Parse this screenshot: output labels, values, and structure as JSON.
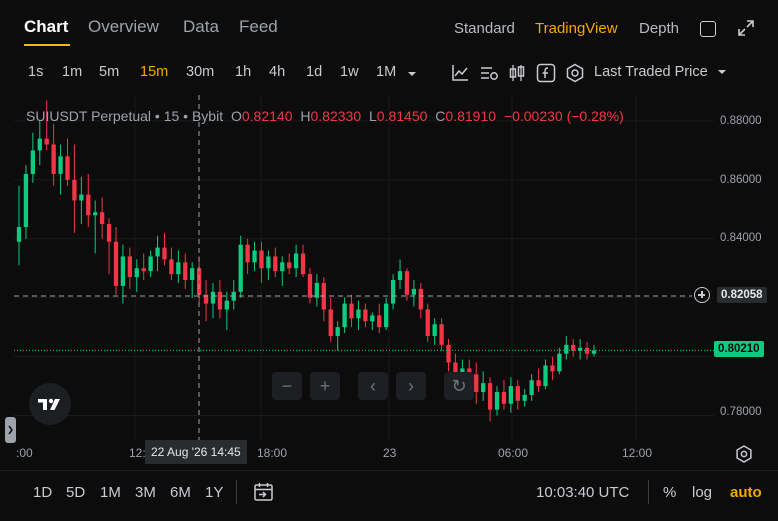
{
  "tabs": [
    {
      "label": "Chart",
      "active": true
    },
    {
      "label": "Overview",
      "active": false
    },
    {
      "label": "Data",
      "active": false
    },
    {
      "label": "Feed",
      "active": false
    }
  ],
  "view_modes": [
    {
      "label": "Standard",
      "active": false
    },
    {
      "label": "TradingView",
      "active": true
    },
    {
      "label": "Depth",
      "active": false
    }
  ],
  "intervals": [
    {
      "label": "1s",
      "active": false
    },
    {
      "label": "1m",
      "active": false
    },
    {
      "label": "5m",
      "active": false
    },
    {
      "label": "15m",
      "active": true
    },
    {
      "label": "30m",
      "active": false
    },
    {
      "label": "1h",
      "active": false
    },
    {
      "label": "4h",
      "active": false
    },
    {
      "label": "1d",
      "active": false
    },
    {
      "label": "1w",
      "active": false
    },
    {
      "label": "1M",
      "active": false
    }
  ],
  "toolbar_icons": [
    "indicators-icon",
    "templates-icon",
    "candle-type-icon",
    "fx-icon",
    "settings-hex-icon"
  ],
  "price_type": "Last Traded Price",
  "legend": {
    "symbol": "SUIUSDT Perpetual",
    "interval": "15",
    "exchange": "Bybit",
    "o_label": "O",
    "o": "0.82140",
    "h_label": "H",
    "h": "0.82330",
    "l_label": "L",
    "l": "0.81450",
    "c_label": "C",
    "c": "0.81910",
    "change": "−0.00230 (−0.28%)"
  },
  "price_ticks": [
    "0.88000",
    "0.86000",
    "0.84000",
    "0.78000"
  ],
  "crosshair_price": "0.82058",
  "last_price": "0.80210",
  "time_ticks": [
    ":00",
    "12:",
    "18:00",
    "23",
    "06:00",
    "12:00"
  ],
  "crosshair_time": "22 Aug '26   14:45",
  "ranges": [
    "1D",
    "5D",
    "1M",
    "3M",
    "6M",
    "1Y"
  ],
  "clock": "10:03:40 UTC",
  "options": {
    "percent": "%",
    "log": "log",
    "auto": "auto"
  },
  "colors": {
    "up": "#0ecb81",
    "down": "#f23645",
    "accent": "#f7a600"
  },
  "chart_data": {
    "type": "candlestick",
    "ylim": [
      0.7717,
      0.8888
    ],
    "candles": [
      [
        0.839,
        0.858,
        0.831,
        0.844
      ],
      [
        0.844,
        0.865,
        0.84,
        0.862
      ],
      [
        0.862,
        0.876,
        0.859,
        0.87
      ],
      [
        0.87,
        0.88,
        0.865,
        0.874
      ],
      [
        0.874,
        0.887,
        0.87,
        0.872
      ],
      [
        0.872,
        0.879,
        0.858,
        0.862
      ],
      [
        0.862,
        0.872,
        0.855,
        0.868
      ],
      [
        0.868,
        0.874,
        0.858,
        0.86
      ],
      [
        0.86,
        0.872,
        0.842,
        0.853
      ],
      [
        0.853,
        0.861,
        0.845,
        0.855
      ],
      [
        0.855,
        0.862,
        0.844,
        0.848
      ],
      [
        0.848,
        0.853,
        0.835,
        0.849
      ],
      [
        0.849,
        0.854,
        0.84,
        0.845
      ],
      [
        0.845,
        0.847,
        0.828,
        0.839
      ],
      [
        0.839,
        0.844,
        0.821,
        0.824
      ],
      [
        0.824,
        0.838,
        0.818,
        0.834
      ],
      [
        0.834,
        0.837,
        0.823,
        0.827
      ],
      [
        0.827,
        0.833,
        0.822,
        0.83
      ],
      [
        0.83,
        0.835,
        0.826,
        0.829
      ],
      [
        0.829,
        0.836,
        0.827,
        0.834
      ],
      [
        0.834,
        0.841,
        0.829,
        0.837
      ],
      [
        0.837,
        0.842,
        0.831,
        0.833
      ],
      [
        0.833,
        0.837,
        0.826,
        0.828
      ],
      [
        0.828,
        0.836,
        0.825,
        0.832
      ],
      [
        0.832,
        0.835,
        0.823,
        0.826
      ],
      [
        0.826,
        0.832,
        0.82,
        0.83
      ],
      [
        0.83,
        0.834,
        0.818,
        0.821
      ],
      [
        0.821,
        0.826,
        0.812,
        0.818
      ],
      [
        0.818,
        0.825,
        0.813,
        0.822
      ],
      [
        0.822,
        0.826,
        0.813,
        0.816
      ],
      [
        0.816,
        0.822,
        0.809,
        0.819
      ],
      [
        0.819,
        0.826,
        0.816,
        0.822
      ],
      [
        0.822,
        0.841,
        0.82,
        0.838
      ],
      [
        0.838,
        0.84,
        0.828,
        0.832
      ],
      [
        0.832,
        0.839,
        0.829,
        0.836
      ],
      [
        0.836,
        0.839,
        0.825,
        0.83
      ],
      [
        0.83,
        0.836,
        0.826,
        0.834
      ],
      [
        0.834,
        0.837,
        0.827,
        0.829
      ],
      [
        0.829,
        0.834,
        0.824,
        0.832
      ],
      [
        0.832,
        0.835,
        0.828,
        0.83
      ],
      [
        0.83,
        0.838,
        0.827,
        0.835
      ],
      [
        0.835,
        0.838,
        0.827,
        0.828
      ],
      [
        0.828,
        0.83,
        0.818,
        0.82
      ],
      [
        0.82,
        0.828,
        0.817,
        0.825
      ],
      [
        0.825,
        0.827,
        0.812,
        0.816
      ],
      [
        0.816,
        0.82,
        0.805,
        0.807
      ],
      [
        0.807,
        0.812,
        0.802,
        0.81
      ],
      [
        0.81,
        0.82,
        0.808,
        0.818
      ],
      [
        0.818,
        0.821,
        0.81,
        0.813
      ],
      [
        0.813,
        0.819,
        0.809,
        0.816
      ],
      [
        0.816,
        0.818,
        0.81,
        0.812
      ],
      [
        0.812,
        0.815,
        0.809,
        0.814
      ],
      [
        0.814,
        0.818,
        0.808,
        0.81
      ],
      [
        0.81,
        0.82,
        0.809,
        0.818
      ],
      [
        0.818,
        0.828,
        0.816,
        0.826
      ],
      [
        0.826,
        0.833,
        0.823,
        0.829
      ],
      [
        0.829,
        0.83,
        0.819,
        0.821
      ],
      [
        0.821,
        0.826,
        0.817,
        0.823
      ],
      [
        0.823,
        0.825,
        0.813,
        0.816
      ],
      [
        0.816,
        0.818,
        0.805,
        0.807
      ],
      [
        0.807,
        0.813,
        0.804,
        0.811
      ],
      [
        0.811,
        0.813,
        0.802,
        0.804
      ],
      [
        0.804,
        0.806,
        0.795,
        0.798
      ],
      [
        0.798,
        0.801,
        0.789,
        0.792
      ],
      [
        0.792,
        0.799,
        0.788,
        0.796
      ],
      [
        0.796,
        0.799,
        0.79,
        0.794
      ],
      [
        0.794,
        0.798,
        0.784,
        0.788
      ],
      [
        0.788,
        0.795,
        0.785,
        0.791
      ],
      [
        0.791,
        0.793,
        0.778,
        0.782
      ],
      [
        0.782,
        0.79,
        0.78,
        0.788
      ],
      [
        0.788,
        0.792,
        0.782,
        0.784
      ],
      [
        0.784,
        0.793,
        0.781,
        0.79
      ],
      [
        0.79,
        0.792,
        0.782,
        0.785
      ],
      [
        0.785,
        0.789,
        0.783,
        0.787
      ],
      [
        0.787,
        0.794,
        0.785,
        0.792
      ],
      [
        0.792,
        0.796,
        0.788,
        0.79
      ],
      [
        0.79,
        0.799,
        0.789,
        0.797
      ],
      [
        0.797,
        0.8,
        0.792,
        0.795
      ],
      [
        0.795,
        0.803,
        0.794,
        0.801
      ],
      [
        0.801,
        0.807,
        0.799,
        0.804
      ],
      [
        0.804,
        0.806,
        0.8,
        0.802
      ],
      [
        0.802,
        0.806,
        0.799,
        0.803
      ],
      [
        0.803,
        0.805,
        0.799,
        0.801
      ],
      [
        0.801,
        0.804,
        0.8,
        0.8021
      ]
    ]
  }
}
